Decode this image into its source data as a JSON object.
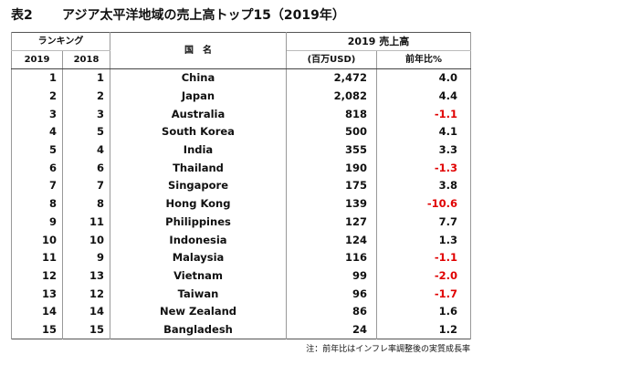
{
  "header": {
    "label": "表2",
    "title": "アジア太平洋地域の売上高トップ15（2019年）"
  },
  "table": {
    "headers": {
      "ranking": "ランキング",
      "rank_2019": "2019",
      "rank_2018": "2018",
      "country": "国　名",
      "sales": "2019 売上高",
      "sales_unit": "(百万USD)",
      "growth": "前年比%"
    },
    "rows": [
      [
        "1",
        "1",
        "China",
        "2,472",
        "4.0"
      ],
      [
        "2",
        "2",
        "Japan",
        "2,082",
        "4.4"
      ],
      [
        "3",
        "3",
        "Australia",
        "818",
        "-1.1"
      ],
      [
        "4",
        "5",
        "South Korea",
        "500",
        "4.1"
      ],
      [
        "5",
        "4",
        "India",
        "355",
        "3.3"
      ],
      [
        "6",
        "6",
        "Thailand",
        "190",
        "-1.3"
      ],
      [
        "7",
        "7",
        "Singapore",
        "175",
        "3.8"
      ],
      [
        "8",
        "8",
        "Hong Kong",
        "139",
        "-10.6"
      ],
      [
        "9",
        "11",
        "Philippines",
        "127",
        "7.7"
      ],
      [
        "10",
        "10",
        "Indonesia",
        "124",
        "1.3"
      ],
      [
        "11",
        "9",
        "Malaysia",
        "116",
        "-1.1"
      ],
      [
        "12",
        "13",
        "Vietnam",
        "99",
        "-2.0"
      ],
      [
        "13",
        "12",
        "Taiwan",
        "96",
        "-1.7"
      ],
      [
        "14",
        "14",
        "New Zealand",
        "86",
        "1.6"
      ],
      [
        "15",
        "15",
        "Bangladesh",
        "24",
        "1.2"
      ]
    ]
  },
  "note": "注：前年比はインフレ率調整後の実質成長率"
}
